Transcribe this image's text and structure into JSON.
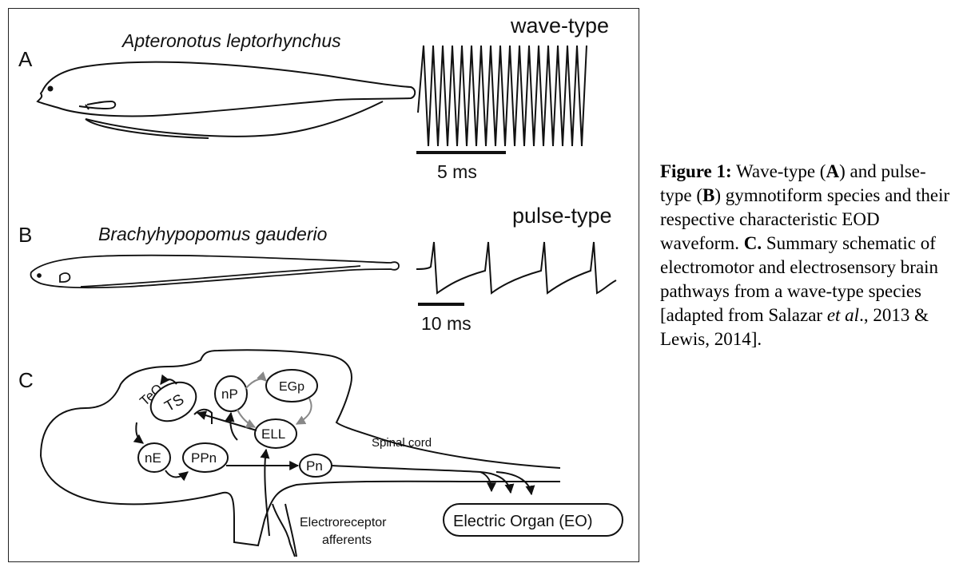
{
  "panels": {
    "A": {
      "letter": "A",
      "species": "Apteronotus leptorhynchus",
      "type_label": "wave-type",
      "scale_label": "5 ms"
    },
    "B": {
      "letter": "B",
      "species": "Brachyhypopomus gauderio",
      "type_label": "pulse-type",
      "scale_label": "10 ms"
    },
    "C": {
      "letter": "C",
      "nodes": {
        "teo": "TeO",
        "ts": "TS",
        "np": "nP",
        "egp": "EGp",
        "ell": "ELL",
        "ne": "nE",
        "ppn": "PPn",
        "pn": "Pn"
      },
      "spinal_cord": "Spinal cord",
      "electric_organ": "Electric Organ (EO)",
      "afferents_line1": "Electroreceptor",
      "afferents_line2": "afferents"
    }
  },
  "caption": {
    "fig_label": "Figure 1:",
    "t1": " Wave-type (",
    "a": "A",
    "t2": ") and pulse-type (",
    "b": "B",
    "t3": ") gymnotiform species and their respective characteristic EOD waveform. ",
    "c": "C.",
    "t4": " Summary schematic of electromotor and electrosensory brain pathways from a wave-type species [adapted from Salazar ",
    "etal": "et al",
    "t5": "., 2013 & Lewis, 2014]."
  },
  "colors": {
    "ink": "#111111",
    "gray_arrow": "#888888"
  }
}
